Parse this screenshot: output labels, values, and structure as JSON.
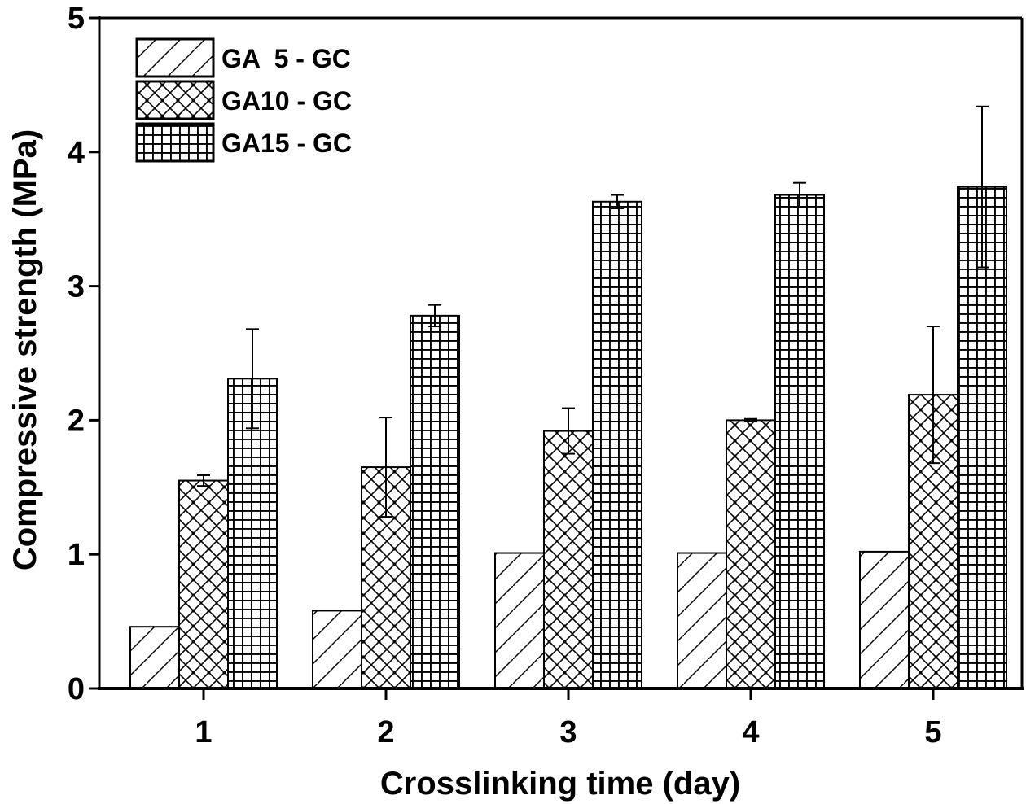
{
  "chart_data": {
    "type": "bar",
    "title": "",
    "xlabel": "Crosslinking time (day)",
    "ylabel": "Compressive strength (MPa)",
    "categories": [
      "1",
      "2",
      "3",
      "4",
      "5"
    ],
    "ylim": [
      0,
      5
    ],
    "yticks": [
      "0",
      "1",
      "2",
      "3",
      "4",
      "5"
    ],
    "grid": false,
    "legend_position": "top-left",
    "series": [
      {
        "name": "GA  5 - GC",
        "pattern": "diagonal-hatch",
        "values": [
          0.46,
          0.58,
          1.01,
          1.01,
          1.02
        ],
        "errors": [
          0,
          0,
          0,
          0,
          0
        ]
      },
      {
        "name": "GA10 - GC",
        "pattern": "cross-hatch",
        "values": [
          1.55,
          1.65,
          1.92,
          2.0,
          2.19
        ],
        "errors": [
          0.04,
          0.37,
          0.17,
          0.01,
          0.51
        ]
      },
      {
        "name": "GA15 - GC",
        "pattern": "grid",
        "values": [
          2.31,
          2.78,
          3.63,
          3.68,
          3.74
        ],
        "errors": [
          0.37,
          0.08,
          0.05,
          0.09,
          0.6
        ]
      }
    ],
    "colors": {
      "ink": "#000000",
      "background": "#ffffff"
    }
  }
}
